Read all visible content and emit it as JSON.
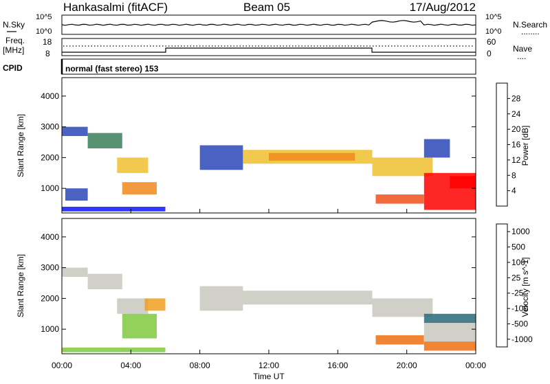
{
  "header": {
    "station": "Hankasalmi (fitACF)",
    "beam": "Beam 05",
    "date": "17/Aug/2012"
  },
  "noise_panel": {
    "left_label": "N.Sky",
    "right_label": "N.Search",
    "right_legend": "........",
    "tick_high": "10^5",
    "tick_low": "10^0"
  },
  "freq_panel": {
    "left_label": "Freq.",
    "left_unit": "[MHz]",
    "left_ticks": [
      "18",
      "8"
    ],
    "right_label": "Nave",
    "right_legend": "....",
    "right_ticks": [
      "60",
      "0"
    ]
  },
  "cpid": {
    "label": "CPID",
    "mode": "normal (fast stereo) 153"
  },
  "time_axis": {
    "label": "Time UT",
    "ticks": [
      "00:00",
      "04:00",
      "08:00",
      "12:00",
      "16:00",
      "20:00",
      "00:00"
    ]
  },
  "chart_data": [
    {
      "type": "heatmap",
      "name": "power",
      "ylabel": "Slant Range [km]",
      "y_ticks": [
        "1000",
        "2000",
        "3000",
        "4000"
      ],
      "ylim": [
        200,
        4600
      ],
      "xlim_hours": [
        0,
        24
      ],
      "colorbar": {
        "label": "Power [dB]",
        "ticks": [
          "4",
          "8",
          "12",
          "16",
          "20",
          "24",
          "28"
        ],
        "colors": [
          "#0a14ff",
          "#2a46b6",
          "#3a7f5a",
          "#68b33a",
          "#f0c030",
          "#f08a1c",
          "#f0501c",
          "#ff0000"
        ]
      },
      "regions": [
        {
          "t": [
            0.0,
            1.5
          ],
          "r": [
            2700,
            3000
          ],
          "level": 1
        },
        {
          "t": [
            1.5,
            3.5
          ],
          "r": [
            2300,
            2800
          ],
          "level": 2
        },
        {
          "t": [
            3.2,
            5.0
          ],
          "r": [
            1500,
            2000
          ],
          "level": 4
        },
        {
          "t": [
            3.5,
            5.5
          ],
          "r": [
            800,
            1200
          ],
          "level": 5
        },
        {
          "t": [
            0.2,
            1.5
          ],
          "r": [
            600,
            1000
          ],
          "level": 1
        },
        {
          "t": [
            0.0,
            6.0
          ],
          "r": [
            250,
            400
          ],
          "level": 0
        },
        {
          "t": [
            8.0,
            10.5
          ],
          "r": [
            1600,
            2400
          ],
          "level": 1
        },
        {
          "t": [
            10.5,
            18.0
          ],
          "r": [
            1800,
            2250
          ],
          "level": 4
        },
        {
          "t": [
            12.0,
            17.0
          ],
          "r": [
            1900,
            2150
          ],
          "level": 5
        },
        {
          "t": [
            18.0,
            21.5
          ],
          "r": [
            1400,
            2000
          ],
          "level": 4
        },
        {
          "t": [
            21.0,
            22.5
          ],
          "r": [
            2000,
            2600
          ],
          "level": 1
        },
        {
          "t": [
            18.2,
            21.0
          ],
          "r": [
            500,
            800
          ],
          "level": 6
        },
        {
          "t": [
            21.0,
            24.0
          ],
          "r": [
            300,
            1500
          ],
          "level": 7
        },
        {
          "t": [
            22.5,
            24.0
          ],
          "r": [
            1000,
            1400
          ],
          "level": 7
        }
      ]
    },
    {
      "type": "heatmap",
      "name": "velocity",
      "ylabel": "Slant Range [km]",
      "y_ticks": [
        "1000",
        "2000",
        "3000",
        "4000"
      ],
      "ylim": [
        200,
        4600
      ],
      "xlim_hours": [
        0,
        24
      ],
      "colorbar": {
        "label": "Velocity [m s^-1]",
        "ticks": [
          "1000",
          "500",
          "100",
          "25",
          "-25",
          "-100",
          "-500",
          "-1000"
        ],
        "colors": [
          "#2040b0",
          "#2a6a7a",
          "#3aa060",
          "#80c840",
          "#c8c8c0",
          "#f0a020",
          "#f07010",
          "#ff2000"
        ]
      },
      "regions": [
        {
          "t": [
            0.0,
            1.5
          ],
          "r": [
            2700,
            3000
          ],
          "level": 4
        },
        {
          "t": [
            1.5,
            3.5
          ],
          "r": [
            2300,
            2800
          ],
          "level": 4
        },
        {
          "t": [
            3.2,
            5.0
          ],
          "r": [
            1500,
            2000
          ],
          "level": 4
        },
        {
          "t": [
            4.8,
            6.0
          ],
          "r": [
            1600,
            2000
          ],
          "level": 5
        },
        {
          "t": [
            3.5,
            5.5
          ],
          "r": [
            700,
            1500
          ],
          "level": 3
        },
        {
          "t": [
            0.0,
            6.0
          ],
          "r": [
            250,
            400
          ],
          "level": 3
        },
        {
          "t": [
            8.0,
            10.5
          ],
          "r": [
            1600,
            2400
          ],
          "level": 4
        },
        {
          "t": [
            10.5,
            18.0
          ],
          "r": [
            1800,
            2250
          ],
          "level": 4
        },
        {
          "t": [
            18.0,
            21.5
          ],
          "r": [
            1400,
            2000
          ],
          "level": 4
        },
        {
          "t": [
            18.2,
            21.0
          ],
          "r": [
            500,
            800
          ],
          "level": 6
        },
        {
          "t": [
            21.0,
            24.0
          ],
          "r": [
            1200,
            1500
          ],
          "level": 1
        },
        {
          "t": [
            21.0,
            24.0
          ],
          "r": [
            600,
            1200
          ],
          "level": 4
        },
        {
          "t": [
            21.0,
            24.0
          ],
          "r": [
            300,
            600
          ],
          "level": 6
        }
      ]
    }
  ]
}
